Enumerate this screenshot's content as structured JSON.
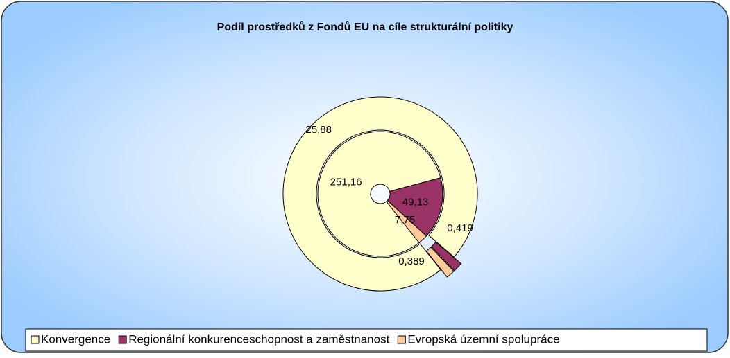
{
  "chart_data": {
    "type": "doughnut",
    "title": "Podíl prostředků z Fondů EU na cíle strukturální politiky",
    "categories": [
      "Konvergence",
      "Regionální konkurenceschopnost a zaměstnanost",
      "Evropská územní spolupráce"
    ],
    "colors": [
      "#ffffcc",
      "#993366",
      "#ffcc99"
    ],
    "series": [
      {
        "values": [
          251.16,
          49.13,
          7.75
        ],
        "value_labels": [
          "251,16",
          "49,13",
          "7,75"
        ]
      },
      {
        "values": [
          25.88,
          0.419,
          0.389
        ],
        "value_labels": [
          "25,88",
          "0,419",
          "0,389"
        ]
      }
    ],
    "legend": "bottom"
  }
}
